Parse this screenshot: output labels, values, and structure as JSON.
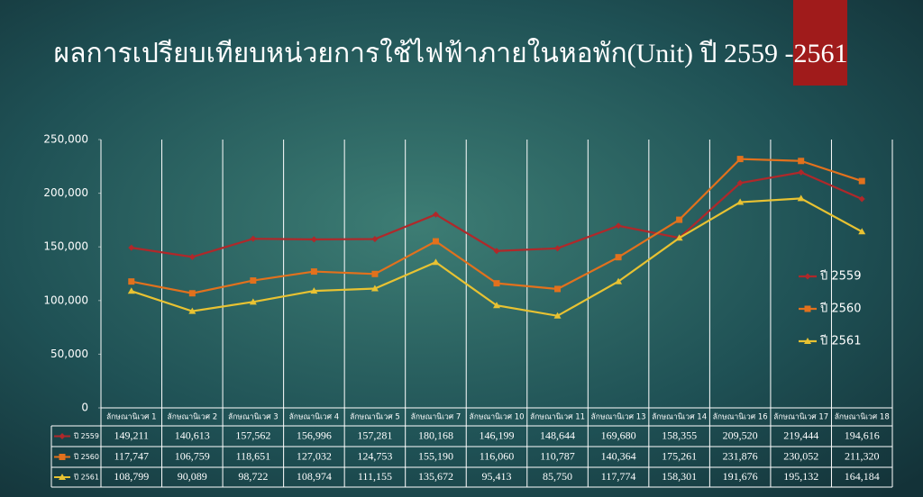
{
  "chart_data": {
    "type": "line",
    "title": "ผลการเปรียบเทียบหน่วยการใช้ไฟฟ้าภายในหอพัก(Unit) ปี 2559 -2561",
    "categories": [
      "ลักษณานิเวศ 1",
      "ลักษณานิเวศ 2",
      "ลักษณานิเวศ 3",
      "ลักษณานิเวศ 4",
      "ลักษณานิเวศ 5",
      "ลักษณานิเวศ 7",
      "ลักษณานิเวศ 10",
      "ลักษณานิเวศ 11",
      "ลักษณานิเวศ 13",
      "ลักษณานิเวศ 14",
      "ลักษณานิเวศ 16",
      "ลักษณานิเวศ 17",
      "ลักษณานิเวศ 18"
    ],
    "series": [
      {
        "name": "ปี 2559",
        "color": "#b0282a",
        "marker": "diamond",
        "values": [
          149211,
          140613,
          157562,
          156996,
          157281,
          180168,
          146199,
          148644,
          169680,
          158355,
          209520,
          219444,
          194616
        ],
        "value_labels": [
          "149,211",
          "140,613",
          "157,562",
          "156,996",
          "157,281",
          "180,168",
          "146,199",
          "148,644",
          "169,680",
          "158,355",
          "209,520",
          "219,444",
          "194,616"
        ]
      },
      {
        "name": "ปี 2560",
        "color": "#e2711d",
        "marker": "square",
        "values": [
          117747,
          106759,
          118651,
          127032,
          124753,
          155190,
          116060,
          110787,
          140364,
          175261,
          231876,
          230052,
          211320
        ],
        "value_labels": [
          "117,747",
          "106,759",
          "118,651",
          "127,032",
          "124,753",
          "155,190",
          "116,060",
          "110,787",
          "140,364",
          "175,261",
          "231,876",
          "230,052",
          "211,320"
        ]
      },
      {
        "name": "ปี 2561",
        "color": "#e8c232",
        "marker": "triangle",
        "values": [
          108799,
          90089,
          98722,
          108974,
          111155,
          135672,
          95413,
          85750,
          117774,
          158301,
          191676,
          195132,
          164184
        ],
        "value_labels": [
          "108,799",
          "90,089",
          "98,722",
          "108,974",
          "111,155",
          "135,672",
          "95,413",
          "85,750",
          "117,774",
          "158,301",
          "191,676",
          "195,132",
          "164,184"
        ]
      }
    ],
    "ylim": [
      0,
      250000
    ],
    "yticks": [
      0,
      {
        "value": 50000,
        "label": "50,000"
      },
      {
        "value": 100000,
        "label": "100,000"
      },
      {
        "value": 150000,
        "label": "150,000"
      },
      {
        "value": 200000,
        "label": "200,000"
      },
      {
        "value": 250000,
        "label": "250,000"
      }
    ],
    "legend": "right"
  }
}
